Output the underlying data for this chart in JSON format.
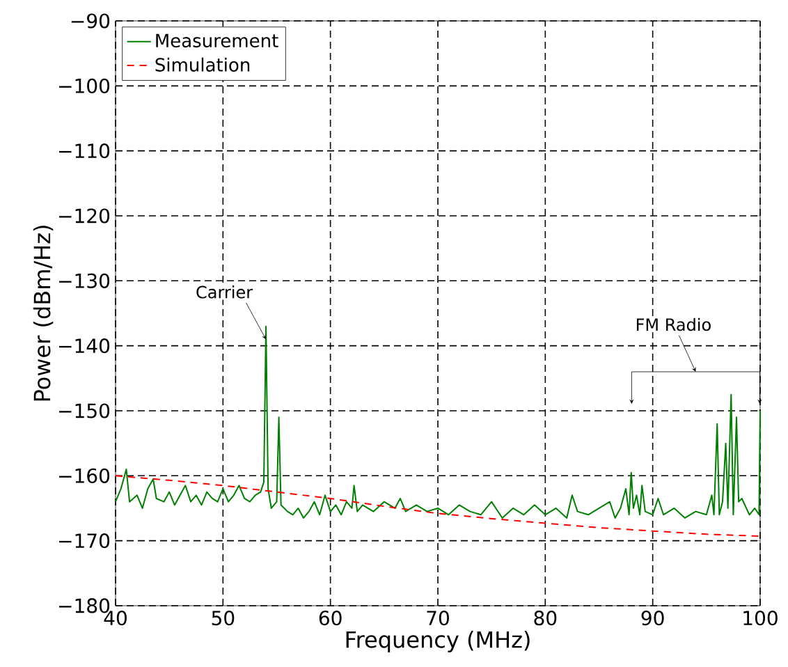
{
  "chart_data": {
    "type": "line",
    "xlabel": "Frequency (MHz)",
    "ylabel": "Power (dBm/Hz)",
    "xlim": [
      40,
      100
    ],
    "ylim": [
      -180,
      -90
    ],
    "xticks": [
      40,
      50,
      60,
      70,
      80,
      90,
      100
    ],
    "yticks": [
      {
        "value": -180,
        "label": "−180"
      },
      {
        "value": -170,
        "label": "−170"
      },
      {
        "value": -160,
        "label": "−160"
      },
      {
        "value": -150,
        "label": "−150"
      },
      {
        "value": -140,
        "label": "−140"
      },
      {
        "value": -130,
        "label": "−130"
      },
      {
        "value": -120,
        "label": "−120"
      },
      {
        "value": -110,
        "label": "−110"
      },
      {
        "value": -100,
        "label": "−100"
      },
      {
        "value": -90,
        "label": "−90"
      }
    ],
    "grid": true,
    "legend": "top left",
    "annotations": [
      {
        "text": "Carrier",
        "x": 54,
        "y": -139
      },
      {
        "text": "FM Radio",
        "x": 94,
        "y": -144
      }
    ],
    "series": [
      {
        "name": "Measurement",
        "color": "#008000",
        "line_style": "solid",
        "x": [
          40,
          40.5,
          41,
          41.3,
          42,
          42.5,
          43,
          43.5,
          43.8,
          44.5,
          45,
          45.5,
          46,
          46.5,
          47,
          47.5,
          48,
          48.5,
          49,
          49.5,
          50,
          50.5,
          51,
          51.5,
          52,
          52.5,
          53,
          53.5,
          53.8,
          54,
          54.2,
          54.5,
          55,
          55.2,
          55.4,
          56,
          56.5,
          57,
          57.5,
          58,
          58.5,
          59,
          59.5,
          60,
          60.5,
          61,
          61.5,
          62,
          62.2,
          62.5,
          63,
          64,
          65,
          66,
          66.5,
          67,
          68,
          69,
          70,
          71,
          72,
          73,
          74,
          75,
          76,
          77,
          78,
          79,
          80,
          81,
          82,
          82.5,
          83,
          84,
          85,
          86,
          86.5,
          87,
          87.5,
          87.8,
          88,
          88.2,
          88.5,
          88.8,
          89,
          89.3,
          90,
          90.5,
          91,
          92,
          93,
          94,
          95,
          95.5,
          95.7,
          96,
          96.2,
          96.5,
          96.8,
          97,
          97.3,
          97.5,
          97.8,
          98,
          98.3,
          99,
          99.5,
          99.9,
          100
        ],
        "values": [
          -164,
          -162,
          -159,
          -164,
          -163,
          -165,
          -162,
          -160.5,
          -163.5,
          -164,
          -162.5,
          -164.5,
          -163,
          -161.5,
          -164,
          -163,
          -164.5,
          -162.5,
          -163.5,
          -164,
          -162,
          -164,
          -163,
          -161.5,
          -163.5,
          -164,
          -163,
          -162.5,
          -161,
          -137,
          -162,
          -165,
          -164,
          -151,
          -164.5,
          -165.5,
          -166,
          -165,
          -166.5,
          -165.5,
          -164,
          -166,
          -163,
          -165.5,
          -164.5,
          -166,
          -164,
          -165,
          -161.5,
          -165.5,
          -164.5,
          -165.5,
          -164,
          -165,
          -163.5,
          -165.5,
          -164.5,
          -165.5,
          -165,
          -166,
          -164.5,
          -165.5,
          -166,
          -164,
          -166.5,
          -165,
          -166,
          -164.5,
          -166,
          -165,
          -166.5,
          -163,
          -165.5,
          -166,
          -165,
          -164,
          -166.5,
          -165,
          -162,
          -166,
          -159.5,
          -165,
          -163,
          -166,
          -161.5,
          -165.5,
          -166,
          -163.5,
          -166,
          -165,
          -166.5,
          -165.5,
          -166,
          -163,
          -166,
          -152,
          -166,
          -164,
          -155,
          -165,
          -147.5,
          -166,
          -151,
          -164,
          -163.5,
          -166,
          -165,
          -166,
          -150
        ]
      },
      {
        "name": "Simulation",
        "color": "#ff0000",
        "line_style": "dashed",
        "x": [
          40,
          45,
          50,
          55,
          60,
          65,
          70,
          75,
          80,
          85,
          90,
          95,
          100
        ],
        "values": [
          -160,
          -160.7,
          -161.5,
          -162.5,
          -163.5,
          -164.7,
          -165.8,
          -166.6,
          -167.3,
          -168,
          -168.5,
          -169,
          -169.3
        ]
      }
    ]
  }
}
